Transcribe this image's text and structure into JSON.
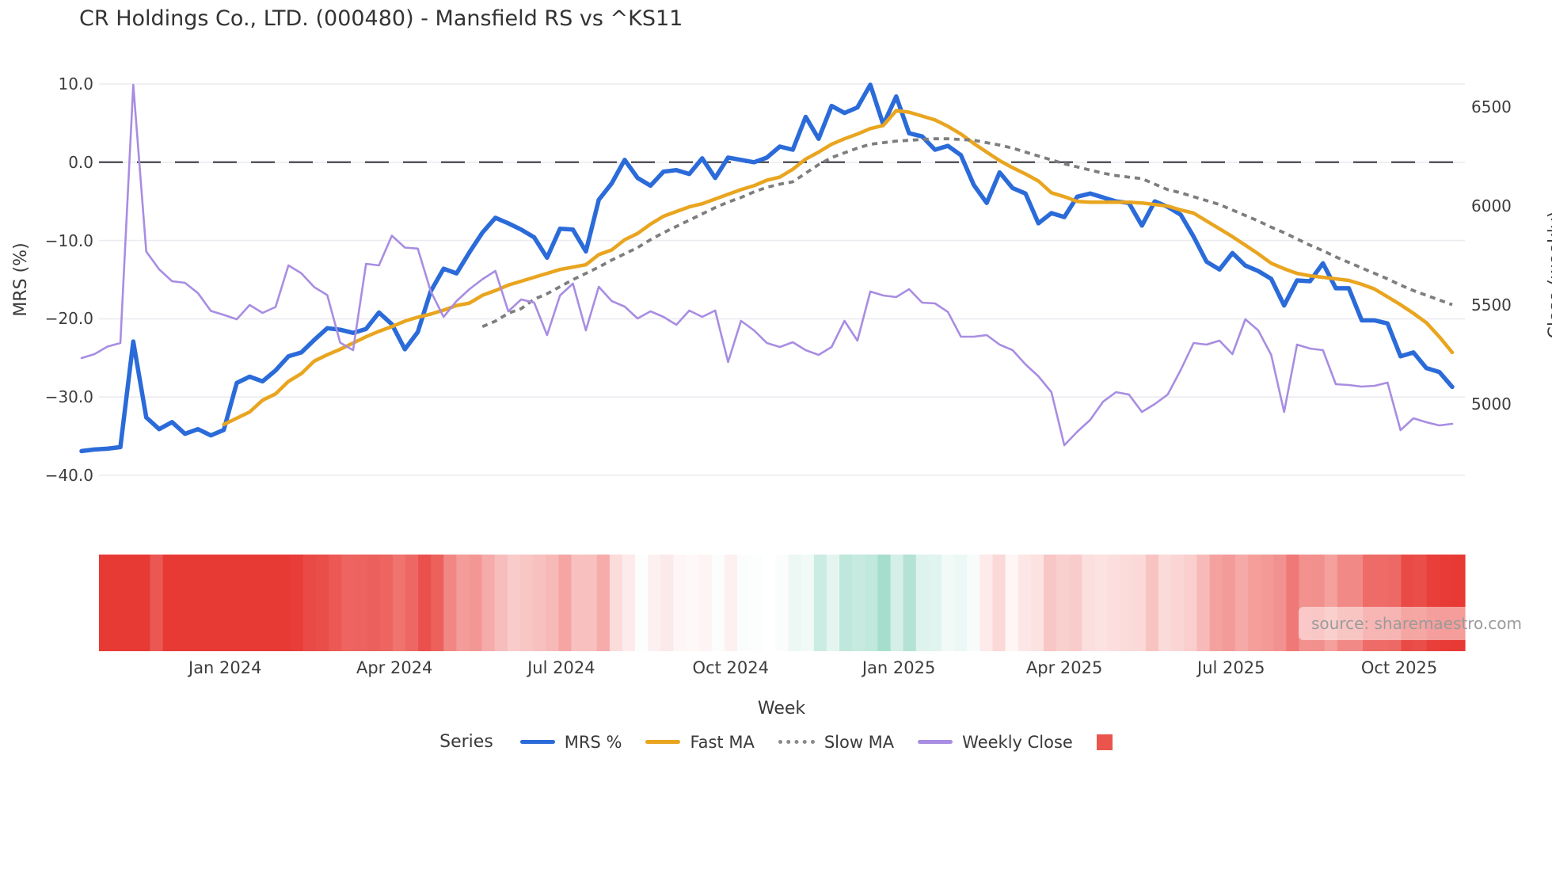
{
  "header": {
    "title": "CR Holdings Co., LTD. (000480) - Mansfield RS vs ^KS11"
  },
  "source": {
    "label": "source: sharemaestro.com"
  },
  "chart_data": {
    "type": "line",
    "title": "CR Holdings Co., LTD. (000480) - Mansfield RS vs ^KS11",
    "xlabel": "Week",
    "ylabel_left": "MRS (%)",
    "ylabel_right": "Close (weekly)",
    "grid": "horizontal-only",
    "zero_line": 0.0,
    "left_axis": {
      "ticks": [
        10.0,
        0.0,
        -10.0,
        -20.0,
        -30.0,
        -40.0
      ],
      "range": [
        -43,
        12
      ]
    },
    "right_axis": {
      "ticks": [
        6500,
        6000,
        5500,
        5000
      ],
      "range": [
        4700,
        6700
      ]
    },
    "n_weeks": 107,
    "x_ticks": [
      {
        "label": "Jan 2024",
        "week": 11.1
      },
      {
        "label": "Apr 2024",
        "week": 24.2
      },
      {
        "label": "Jul 2024",
        "week": 37.1
      },
      {
        "label": "Oct 2024",
        "week": 50.2
      },
      {
        "label": "Jan 2025",
        "week": 63.2
      },
      {
        "label": "Apr 2025",
        "week": 76.0
      },
      {
        "label": "Jul 2025",
        "week": 88.9
      },
      {
        "label": "Oct 2025",
        "week": 101.9
      }
    ],
    "series": [
      {
        "name": "MRS %",
        "axis": "left",
        "color": "#2b6bd9",
        "style": "solid",
        "width": 5.5,
        "values": [
          -36.9,
          -36.7,
          -36.6,
          -36.4,
          -22.9,
          -32.6,
          -34.1,
          -33.2,
          -34.7,
          -34.1,
          -34.9,
          -34.2,
          -28.2,
          -27.4,
          -28.0,
          -26.6,
          -24.8,
          -24.3,
          -22.7,
          -21.2,
          -21.4,
          -21.8,
          -21.3,
          -19.2,
          -20.7,
          -23.9,
          -21.7,
          -16.5,
          -13.6,
          -14.2,
          -11.5,
          -9.0,
          -7.1,
          -7.8,
          -8.6,
          -9.6,
          -12.2,
          -8.5,
          -8.6,
          -11.4,
          -4.8,
          -2.7,
          0.3,
          -2.0,
          -3.0,
          -1.2,
          -1.0,
          -1.5,
          0.5,
          -2.0,
          0.6,
          0.3,
          0.0,
          0.6,
          2.0,
          1.6,
          5.8,
          3.0,
          7.2,
          6.3,
          7.0,
          9.9,
          4.8,
          8.4,
          3.7,
          3.3,
          1.6,
          2.1,
          0.9,
          -2.9,
          -5.2,
          -1.3,
          -3.3,
          -4.0,
          -7.8,
          -6.5,
          -7.0,
          -4.4,
          -4.0,
          -4.5,
          -5.0,
          -5.2,
          -8.1,
          -5.0,
          -5.7,
          -6.7,
          -9.5,
          -12.7,
          -13.7,
          -11.6,
          -13.2,
          -13.9,
          -14.9,
          -18.3,
          -15.1,
          -15.2,
          -12.9,
          -16.1,
          -16.1,
          -20.2,
          -20.2,
          -20.6,
          -24.8,
          -24.3,
          -26.3,
          -26.8,
          -28.7
        ]
      },
      {
        "name": "Fast MA",
        "axis": "left",
        "color": "#e9a51f",
        "style": "solid",
        "width": 4.5,
        "values": [
          null,
          null,
          null,
          null,
          null,
          null,
          null,
          null,
          null,
          null,
          null,
          -33.5,
          -32.7,
          -31.9,
          -30.4,
          -29.6,
          -28.0,
          -27.0,
          -25.4,
          -24.6,
          -23.9,
          -23.1,
          -22.3,
          -21.6,
          -21.0,
          -20.3,
          -19.8,
          -19.4,
          -18.9,
          -18.3,
          -18.0,
          -17.0,
          -16.4,
          -15.7,
          -15.2,
          -14.7,
          -14.2,
          -13.7,
          -13.4,
          -13.1,
          -11.8,
          -11.2,
          -9.9,
          -9.1,
          -7.9,
          -6.9,
          -6.3,
          -5.7,
          -5.3,
          -4.7,
          -4.1,
          -3.5,
          -3.0,
          -2.3,
          -1.9,
          -0.9,
          0.4,
          1.3,
          2.3,
          3.0,
          3.6,
          4.3,
          4.7,
          6.6,
          6.4,
          5.9,
          5.4,
          4.6,
          3.6,
          2.4,
          1.3,
          0.2,
          -0.7,
          -1.5,
          -2.4,
          -3.9,
          -4.4,
          -5.0,
          -5.1,
          -5.1,
          -5.1,
          -5.1,
          -5.2,
          -5.4,
          -5.6,
          -6.1,
          -6.5,
          -7.5,
          -8.5,
          -9.5,
          -10.6,
          -11.7,
          -12.9,
          -13.6,
          -14.2,
          -14.5,
          -14.7,
          -14.9,
          -15.1,
          -15.6,
          -16.2,
          -17.2,
          -18.2,
          -19.3,
          -20.5,
          -22.3,
          -24.3
        ]
      },
      {
        "name": "Slow MA",
        "axis": "left",
        "color": "#7e7e7e",
        "style": "dotted",
        "width": 3.8,
        "values": [
          null,
          null,
          null,
          null,
          null,
          null,
          null,
          null,
          null,
          null,
          null,
          null,
          null,
          null,
          null,
          null,
          null,
          null,
          null,
          null,
          null,
          null,
          null,
          null,
          null,
          null,
          null,
          null,
          null,
          null,
          null,
          -21.0,
          -20.3,
          -19.3,
          -18.7,
          -17.5,
          -16.8,
          -15.9,
          -15.0,
          -14.2,
          -13.4,
          -12.5,
          -11.7,
          -10.9,
          -9.9,
          -9.0,
          -8.2,
          -7.4,
          -6.6,
          -5.8,
          -5.1,
          -4.5,
          -3.8,
          -3.2,
          -2.8,
          -2.5,
          -1.4,
          -0.3,
          0.6,
          1.2,
          1.8,
          2.3,
          2.5,
          2.7,
          2.8,
          2.9,
          3.0,
          3.0,
          2.9,
          2.8,
          2.5,
          2.2,
          1.8,
          1.3,
          0.8,
          0.3,
          -0.2,
          -0.6,
          -1.0,
          -1.4,
          -1.7,
          -1.9,
          -2.1,
          -2.8,
          -3.5,
          -3.9,
          -4.4,
          -4.9,
          -5.4,
          -6.1,
          -6.8,
          -7.5,
          -8.3,
          -9.0,
          -9.8,
          -10.6,
          -11.3,
          -12.1,
          -12.8,
          -13.5,
          -14.2,
          -14.9,
          -15.7,
          -16.4,
          -17.0,
          -17.6,
          -18.2
        ]
      },
      {
        "name": "Weekly Close",
        "axis": "right",
        "color": "#a88de2",
        "style": "solid",
        "width": 2.6,
        "values": [
          5232,
          5252,
          5290,
          5308,
          6612,
          5770,
          5680,
          5620,
          5612,
          5560,
          5470,
          5450,
          5428,
          5500,
          5460,
          5490,
          5700,
          5660,
          5590,
          5550,
          5310,
          5272,
          5708,
          5700,
          5850,
          5790,
          5785,
          5570,
          5440,
          5520,
          5580,
          5630,
          5672,
          5468,
          5528,
          5512,
          5348,
          5548,
          5608,
          5372,
          5592,
          5520,
          5492,
          5432,
          5468,
          5440,
          5400,
          5472,
          5440,
          5472,
          5212,
          5420,
          5372,
          5308,
          5288,
          5312,
          5272,
          5248,
          5288,
          5420,
          5320,
          5568,
          5548,
          5540,
          5580,
          5512,
          5508,
          5465,
          5340,
          5340,
          5348,
          5300,
          5272,
          5200,
          5140,
          5060,
          4792,
          4860,
          4920,
          5012,
          5060,
          5048,
          4960,
          5000,
          5048,
          5172,
          5308,
          5300,
          5320,
          5252,
          5428,
          5372,
          5248,
          4960,
          5300,
          5280,
          5272,
          5100,
          5096,
          5088,
          5092,
          5108,
          4868,
          4928,
          4908,
          4892,
          4900
        ]
      }
    ],
    "heatmap_strip": {
      "description": "weekly cells colored by MRS % value",
      "negative_color": "#e83a35",
      "positive_color": "#28b088",
      "neutral_color": "#ffffff"
    },
    "legend": {
      "title": "Series",
      "items": [
        {
          "label": "MRS %",
          "swatch": "line",
          "color": "#2b6bd9"
        },
        {
          "label": "Fast MA",
          "swatch": "line",
          "color": "#e9a51f"
        },
        {
          "label": "Slow MA",
          "swatch": "dotted-line",
          "color": "#8a8a8a"
        },
        {
          "label": "Weekly Close",
          "swatch": "line",
          "color": "#a88de2"
        },
        {
          "label": "",
          "swatch": "square",
          "color": "#ea544d"
        }
      ]
    },
    "colors": {
      "zero_line": "#55565c",
      "gridline": "#ebebf1",
      "tick_text": "#3d3d3d"
    }
  }
}
